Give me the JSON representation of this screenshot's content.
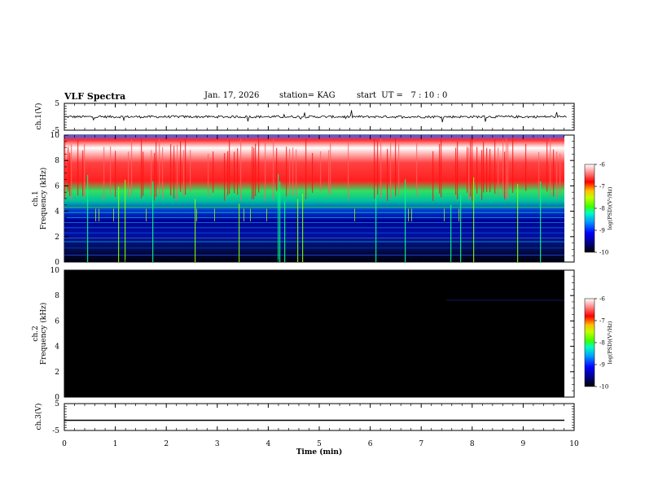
{
  "header": {
    "title": "VLF Spectra",
    "date": "Jan. 17, 2026",
    "station": "station= KAG",
    "start_ut": "start  UT =   7 : 10 : 0"
  },
  "chart_data": [
    {
      "type": "line",
      "panel": "ch1-waveform",
      "ylabel": "ch.1(V)",
      "ylim": [
        -5,
        5
      ],
      "yticks": [
        5,
        -5
      ],
      "xlim": [
        0,
        10
      ],
      "baseline": 0,
      "description_of_series": "noisy trace around 0 V with sparse spikes"
    },
    {
      "type": "heatmap",
      "panel": "ch1-spectrogram",
      "ylabel_line1": "ch.1",
      "ylabel_line2": "Frequency (kHz)",
      "ylim": [
        0,
        10
      ],
      "yticks": [
        0,
        2,
        4,
        6,
        8,
        10
      ],
      "xlim": [
        0,
        10
      ],
      "data_end_min": 9.85,
      "colorbar": {
        "label": "log(PSD)(V²/Hz)",
        "ticks": [
          -6,
          -7,
          -8,
          -9,
          -10
        ],
        "range": [
          -10,
          -6
        ]
      }
    },
    {
      "type": "heatmap",
      "panel": "ch2-spectrogram",
      "ylabel_line1": "ch.2",
      "ylabel_line2": "Frequency (kHz)",
      "ylim": [
        0,
        10
      ],
      "yticks": [
        0,
        2,
        4,
        6,
        8,
        10
      ],
      "xlim": [
        0,
        10
      ],
      "data_end_min": 9.85,
      "colorbar": {
        "label": "log(PSD)(V²/Hz)",
        "ticks": [
          -6,
          -7,
          -8,
          -9,
          -10
        ],
        "range": [
          -10,
          -6
        ]
      }
    },
    {
      "type": "line",
      "panel": "ch3-waveform",
      "ylabel": "ch.3(V)",
      "ylim": [
        -5,
        5
      ],
      "yticks": [
        5,
        -5
      ],
      "xlim": [
        0,
        10
      ],
      "constant_value": -1.2
    }
  ],
  "x_axis": {
    "label": "Time (min)",
    "ticks": [
      0,
      1,
      2,
      3,
      4,
      5,
      6,
      7,
      8,
      9,
      10
    ]
  },
  "colors": {
    "colormap": [
      "#000080",
      "#0000ff",
      "#00a0ff",
      "#00ffc0",
      "#40ff00",
      "#c0ff00",
      "#ffc000",
      "#ff4000",
      "#ff0000",
      "#ff8080",
      "#ffffff"
    ]
  }
}
